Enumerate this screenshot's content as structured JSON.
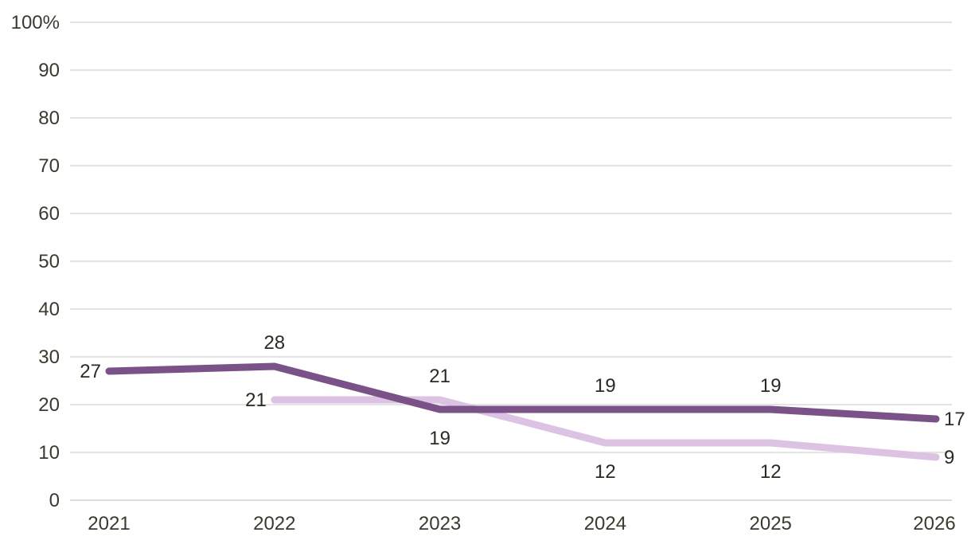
{
  "chart_data": {
    "type": "line",
    "x": [
      "2021",
      "2022",
      "2023",
      "2024",
      "2025",
      "2026"
    ],
    "ylim": [
      0,
      100
    ],
    "yticks": [
      "0",
      "10",
      "20",
      "30",
      "40",
      "50",
      "60",
      "70",
      "80",
      "90",
      "100%"
    ],
    "ytick_values": [
      0,
      10,
      20,
      30,
      40,
      50,
      60,
      70,
      80,
      90,
      100
    ],
    "grid": true,
    "series": [
      {
        "values": [
          27,
          28,
          19,
          19,
          19,
          17
        ],
        "color": "#7a5288"
      },
      {
        "values": [
          null,
          21,
          21,
          12,
          12,
          9
        ],
        "color": "#dcc3e3"
      }
    ]
  }
}
